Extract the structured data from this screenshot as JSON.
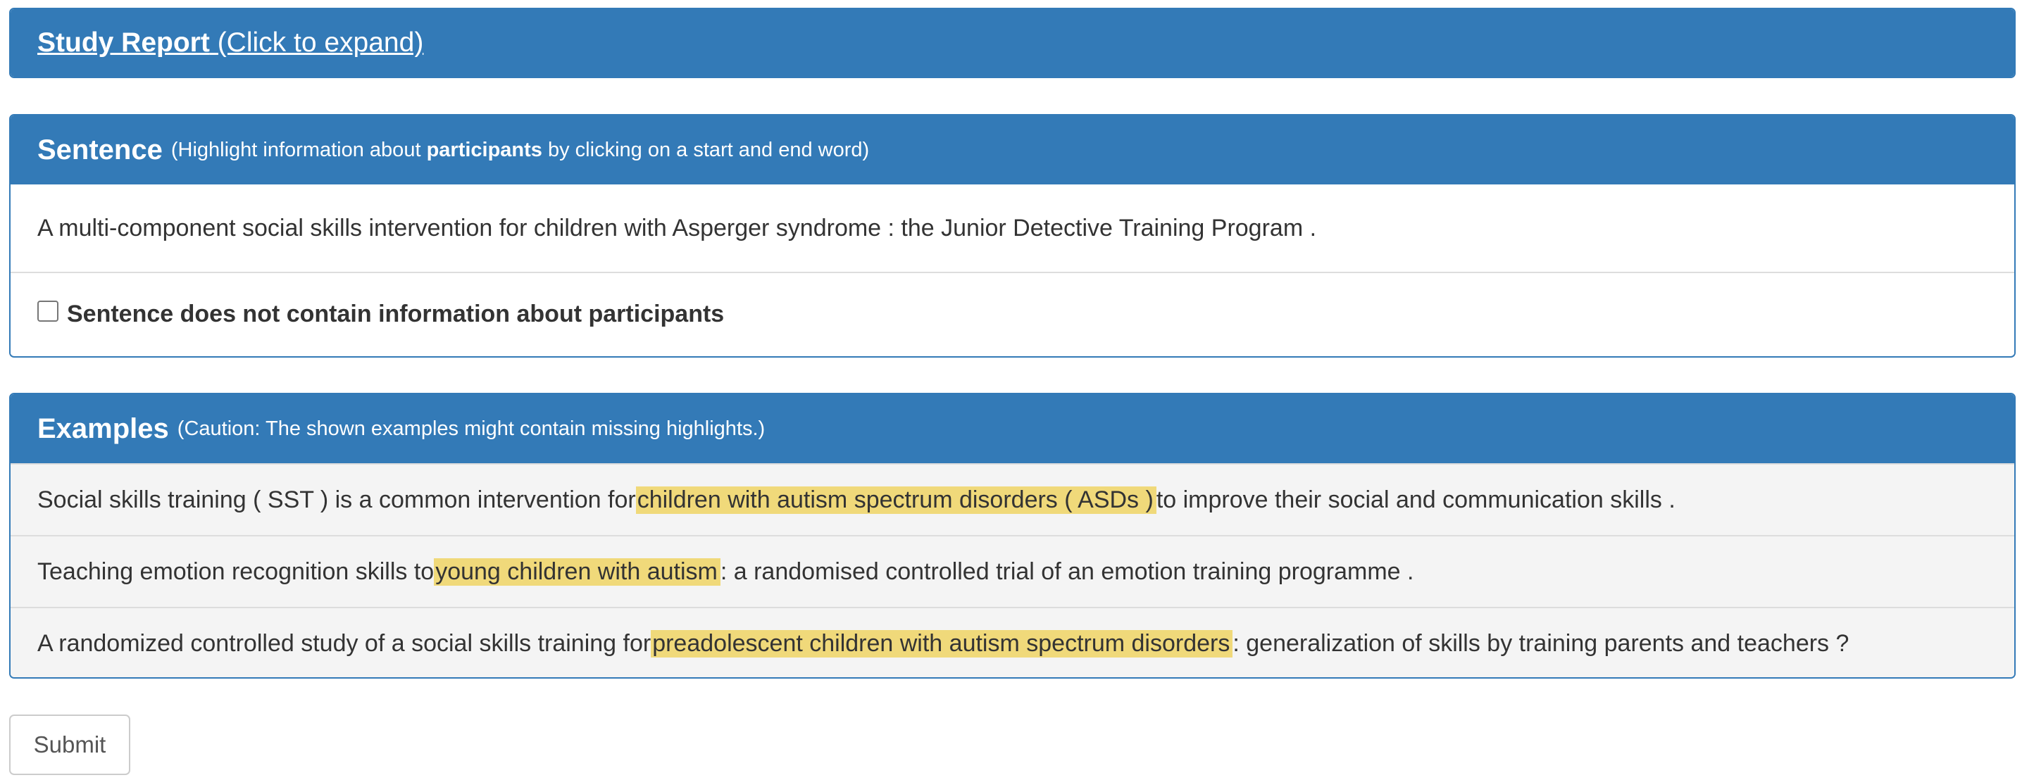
{
  "report": {
    "title_bold": "Study Report",
    "title_rest": "(Click to expand)"
  },
  "sentence": {
    "heading": "Sentence",
    "instruction_pre": "(Highlight information about ",
    "instruction_bold": "participants",
    "instruction_post": " by clicking on a start and end word)",
    "text": "A multi-component social skills intervention for children with Asperger syndrome : the Junior Detective Training Program .",
    "checkbox_label": "Sentence does not contain information about participants",
    "checkbox_checked": false
  },
  "examples": {
    "heading": "Examples",
    "caution": "(Caution: The shown examples might contain missing highlights.)",
    "highlight_color": "#f0d97a",
    "items": [
      {
        "before": "Social skills training ( SST ) is a common intervention for ",
        "highlight": "children with autism spectrum disorders ( ASDs )",
        "after": " to improve their social and communication skills ."
      },
      {
        "before": "Teaching emotion recognition skills to ",
        "highlight": "young children with autism",
        "after": " : a randomised controlled trial of an emotion training programme ."
      },
      {
        "before": "A randomized controlled study of a social skills training for ",
        "highlight": "preadolescent children with autism spectrum disorders",
        "after": " : generalization of skills by training parents and teachers ?"
      }
    ]
  },
  "submit_label": "Submit",
  "colors": {
    "panel_primary": "#337ab7",
    "example_bg": "#f4f4f4"
  }
}
